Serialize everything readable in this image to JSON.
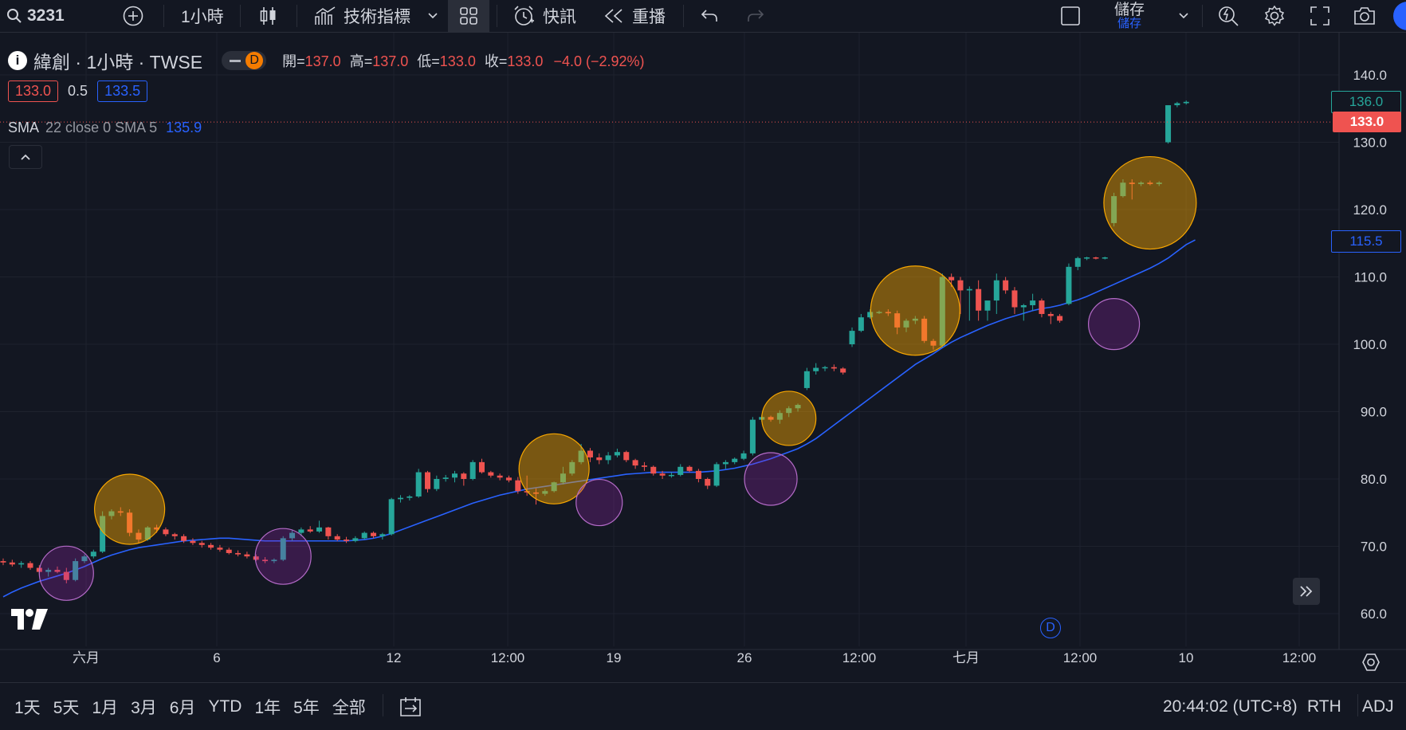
{
  "toolbar": {
    "symbol": "3231",
    "interval": "1小時",
    "indicators": "技術指標",
    "alerts": "快訊",
    "replay": "重播",
    "save_top": "儲存",
    "save_bottom": "儲存"
  },
  "legend": {
    "title": "緯創 · 1小時 · TWSE",
    "badge": "D",
    "open_label": "開=",
    "open": "137.0",
    "high_label": "高=",
    "high": "137.0",
    "low_label": "低=",
    "low": "133.0",
    "close_label": "收=",
    "close": "133.0",
    "change": "−4.0 (−2.92%)",
    "bid": "133.0",
    "spread": "0.5",
    "ask": "133.5",
    "indicator_name": "SMA",
    "indicator_params": "22 close 0 SMA 5",
    "indicator_value": "135.9"
  },
  "price_axis": {
    "ticks": [
      "140.0",
      "130.0",
      "120.0",
      "110.0",
      "100.0",
      "90.0",
      "80.0",
      "70.0",
      "60.0"
    ],
    "last_price": "133.0",
    "upper_label": "136.0",
    "sma_label": "115.5"
  },
  "time_axis": {
    "ticks": [
      "六月",
      "6",
      "12",
      "12:00",
      "19",
      "26",
      "12:00",
      "七月",
      "12:00",
      "10",
      "12:00"
    ]
  },
  "bottom": {
    "ranges": [
      "1天",
      "5天",
      "1月",
      "3月",
      "6月",
      "YTD",
      "1年",
      "5年",
      "全部"
    ],
    "clock": "20:44:02 (UTC+8)",
    "session": "RTH",
    "adj": "ADJ"
  },
  "chart_markers": {
    "dividend_badge": "D"
  },
  "colors": {
    "background": "#131722",
    "up": "#26a69a",
    "down": "#ef5350",
    "sma": "#2962ff",
    "orange_circle": "#f7a600",
    "purple_circle": "#9c27b0"
  },
  "chart_data": {
    "type": "candlestick",
    "ylim": [
      58,
      143
    ],
    "y_ticks": [
      60,
      70,
      80,
      90,
      100,
      110,
      120,
      130,
      140
    ],
    "candles": [
      [
        67.8,
        68.2,
        67.2,
        67.6
      ],
      [
        67.6,
        68.0,
        67.0,
        67.3
      ],
      [
        67.3,
        67.8,
        66.8,
        67.5
      ],
      [
        67.5,
        67.8,
        66.5,
        66.8
      ],
      [
        66.8,
        67.2,
        65.8,
        66.2
      ],
      [
        66.2,
        66.8,
        65.5,
        66.5
      ],
      [
        66.5,
        67.0,
        66.0,
        66.2
      ],
      [
        66.2,
        66.8,
        64.5,
        65.0
      ],
      [
        65.0,
        68.2,
        64.8,
        67.8
      ],
      [
        67.8,
        68.8,
        67.5,
        68.5
      ],
      [
        68.5,
        69.5,
        68.2,
        69.2
      ],
      [
        69.2,
        75.2,
        69.0,
        74.5
      ],
      [
        74.5,
        75.5,
        74.0,
        75.2
      ],
      [
        75.2,
        75.8,
        74.5,
        75.0
      ],
      [
        75.0,
        75.5,
        71.5,
        72.0
      ],
      [
        72.0,
        72.5,
        70.5,
        71.0
      ],
      [
        71.0,
        73.0,
        70.8,
        72.8
      ],
      [
        72.8,
        73.2,
        72.0,
        72.5
      ],
      [
        72.5,
        72.8,
        71.5,
        71.8
      ],
      [
        71.8,
        72.0,
        71.0,
        71.5
      ],
      [
        71.5,
        71.8,
        70.5,
        70.8
      ],
      [
        70.8,
        71.2,
        70.2,
        70.5
      ],
      [
        70.5,
        70.8,
        69.8,
        70.2
      ],
      [
        70.2,
        70.5,
        69.5,
        69.8
      ],
      [
        69.8,
        70.2,
        69.2,
        69.5
      ],
      [
        69.5,
        69.8,
        68.8,
        69.0
      ],
      [
        69.0,
        69.4,
        68.5,
        68.8
      ],
      [
        68.8,
        69.2,
        68.2,
        68.5
      ],
      [
        68.5,
        68.8,
        67.8,
        68.0
      ],
      [
        68.0,
        68.4,
        67.5,
        67.8
      ],
      [
        67.8,
        68.2,
        67.5,
        68.0
      ],
      [
        68.0,
        71.5,
        67.8,
        71.2
      ],
      [
        71.2,
        72.5,
        70.8,
        72.0
      ],
      [
        72.0,
        72.8,
        71.5,
        72.5
      ],
      [
        72.5,
        73.0,
        72.0,
        72.2
      ],
      [
        72.2,
        73.8,
        72.0,
        72.8
      ],
      [
        72.8,
        72.9,
        71.0,
        71.5
      ],
      [
        71.5,
        71.8,
        70.8,
        71.0
      ],
      [
        71.0,
        71.4,
        70.5,
        70.8
      ],
      [
        70.8,
        71.5,
        70.6,
        71.2
      ],
      [
        71.2,
        72.2,
        71.0,
        72.0
      ],
      [
        72.0,
        72.2,
        71.2,
        71.5
      ],
      [
        71.5,
        72.0,
        71.0,
        71.8
      ],
      [
        71.8,
        77.2,
        71.6,
        77.0
      ],
      [
        77.0,
        77.6,
        76.5,
        77.2
      ],
      [
        77.2,
        77.6,
        76.8,
        77.4
      ],
      [
        77.4,
        81.5,
        77.2,
        81.0
      ],
      [
        81.0,
        81.2,
        78.0,
        78.5
      ],
      [
        78.5,
        80.5,
        78.2,
        80.0
      ],
      [
        80.0,
        80.6,
        79.6,
        80.2
      ],
      [
        80.2,
        81.2,
        79.5,
        80.8
      ],
      [
        80.8,
        81.0,
        79.0,
        80.0
      ],
      [
        80.0,
        82.8,
        79.8,
        82.5
      ],
      [
        82.5,
        83.0,
        80.8,
        81.0
      ],
      [
        81.0,
        81.2,
        80.2,
        80.5
      ],
      [
        80.5,
        80.8,
        79.8,
        80.2
      ],
      [
        80.2,
        80.5,
        79.5,
        79.8
      ],
      [
        79.8,
        80.3,
        77.8,
        78.2
      ],
      [
        78.2,
        80.5,
        77.5,
        78.0
      ],
      [
        78.0,
        78.6,
        76.2,
        77.8
      ],
      [
        77.8,
        78.5,
        77.5,
        78.2
      ],
      [
        78.2,
        79.6,
        78.0,
        79.5
      ],
      [
        79.5,
        81.8,
        79.2,
        80.8
      ],
      [
        80.8,
        82.8,
        80.5,
        82.5
      ],
      [
        82.5,
        85.2,
        82.2,
        84.2
      ],
      [
        84.2,
        84.6,
        82.5,
        83.2
      ],
      [
        83.2,
        83.8,
        82.2,
        82.8
      ],
      [
        82.8,
        84.0,
        82.2,
        83.5
      ],
      [
        83.5,
        84.5,
        83.2,
        84.0
      ],
      [
        84.0,
        84.2,
        82.5,
        82.8
      ],
      [
        82.8,
        83.0,
        81.5,
        82.0
      ],
      [
        82.0,
        82.5,
        81.2,
        81.8
      ],
      [
        81.8,
        82.0,
        80.5,
        80.8
      ],
      [
        80.8,
        81.2,
        80.0,
        80.5
      ],
      [
        80.5,
        81.0,
        80.2,
        80.6
      ],
      [
        80.6,
        82.2,
        80.4,
        81.8
      ],
      [
        81.8,
        82.0,
        81.0,
        81.2
      ],
      [
        81.2,
        81.5,
        79.5,
        80.0
      ],
      [
        80.0,
        80.2,
        78.5,
        79.0
      ],
      [
        79.0,
        82.5,
        78.8,
        82.2
      ],
      [
        82.2,
        82.8,
        81.5,
        82.5
      ],
      [
        82.5,
        83.2,
        82.2,
        83.0
      ],
      [
        83.0,
        84.2,
        82.8,
        83.8
      ],
      [
        83.8,
        89.2,
        83.5,
        88.8
      ],
      [
        88.8,
        89.5,
        88.5,
        89.2
      ],
      [
        89.2,
        89.4,
        88.5,
        88.8
      ],
      [
        88.8,
        90.2,
        88.2,
        89.8
      ],
      [
        89.8,
        90.8,
        89.2,
        90.5
      ],
      [
        90.5,
        91.2,
        90.0,
        91.0
      ],
      [
        93.5,
        96.5,
        93.2,
        96.0
      ],
      [
        96.0,
        97.2,
        95.5,
        96.5
      ],
      [
        96.5,
        96.8,
        96.0,
        96.6
      ],
      [
        96.6,
        97.0,
        96.0,
        96.4
      ],
      [
        96.4,
        96.6,
        95.5,
        95.8
      ],
      [
        100.0,
        102.5,
        99.6,
        102.0
      ],
      [
        102.0,
        104.5,
        101.8,
        104.0
      ],
      [
        104.0,
        105.2,
        103.8,
        104.8
      ],
      [
        104.8,
        105.0,
        104.5,
        104.8
      ],
      [
        104.8,
        105.2,
        104.2,
        104.6
      ],
      [
        104.6,
        105.0,
        101.5,
        102.5
      ],
      [
        102.5,
        103.8,
        101.8,
        103.5
      ],
      [
        103.5,
        104.2,
        103.0,
        103.8
      ],
      [
        103.8,
        104.2,
        100.2,
        100.5
      ],
      [
        100.5,
        100.8,
        99.2,
        99.8
      ],
      [
        99.8,
        110.5,
        99.5,
        110.0
      ],
      [
        110.0,
        110.5,
        108.5,
        109.5
      ],
      [
        109.5,
        110.0,
        104.5,
        108.0
      ],
      [
        108.0,
        108.6,
        103.5,
        108.2
      ],
      [
        108.2,
        109.5,
        103.5,
        105.0
      ],
      [
        105.0,
        106.0,
        103.5,
        106.5
      ],
      [
        106.5,
        110.5,
        104.5,
        109.5
      ],
      [
        109.5,
        110.0,
        107.5,
        108.0
      ],
      [
        108.0,
        108.5,
        104.5,
        105.5
      ],
      [
        105.5,
        106.0,
        103.5,
        105.8
      ],
      [
        105.8,
        107.5,
        105.0,
        106.5
      ],
      [
        106.5,
        106.8,
        104.0,
        104.5
      ],
      [
        104.5,
        104.8,
        103.0,
        104.2
      ],
      [
        104.2,
        104.5,
        103.2,
        103.5
      ],
      [
        106.0,
        112.0,
        105.8,
        111.5
      ],
      [
        111.5,
        113.0,
        111.0,
        112.8
      ],
      [
        112.8,
        113.0,
        112.5,
        112.9
      ],
      [
        112.9,
        113.0,
        112.6,
        112.8
      ],
      [
        112.8,
        113.0,
        112.6,
        112.9
      ],
      [
        118.0,
        122.5,
        117.5,
        122.0
      ],
      [
        122.0,
        124.5,
        121.8,
        124.0
      ],
      [
        124.0,
        124.5,
        121.5,
        123.8
      ],
      [
        123.8,
        124.2,
        123.5,
        124.0
      ],
      [
        124.0,
        124.3,
        123.6,
        123.8
      ],
      [
        123.8,
        124.2,
        123.5,
        124.0
      ],
      [
        130.0,
        135.5,
        129.8,
        135.5
      ],
      [
        135.5,
        136.0,
        135.2,
        135.8
      ],
      [
        135.8,
        136.2,
        135.6,
        136.0
      ]
    ],
    "sma": [
      62.5,
      63.2,
      63.8,
      64.3,
      64.8,
      65.2,
      65.6,
      66.0,
      66.5,
      67.0,
      67.6,
      68.2,
      68.7,
      69.1,
      69.5,
      69.8,
      70.0,
      70.2,
      70.4,
      70.6,
      70.8,
      70.9,
      71.0,
      71.1,
      71.2,
      71.2,
      71.1,
      71.0,
      70.9,
      70.8,
      70.8,
      70.8,
      70.8,
      70.8,
      70.8,
      70.8,
      70.8,
      70.8,
      70.8,
      70.9,
      71.0,
      71.2,
      71.5,
      71.9,
      72.4,
      72.9,
      73.4,
      73.9,
      74.4,
      74.9,
      75.4,
      75.9,
      76.4,
      76.8,
      77.2,
      77.6,
      77.9,
      78.2,
      78.5,
      78.7,
      78.9,
      79.1,
      79.3,
      79.5,
      79.7,
      79.9,
      80.1,
      80.3,
      80.5,
      80.7,
      80.8,
      80.9,
      81.0,
      81.0,
      81.0,
      81.0,
      81.0,
      81.0,
      81.1,
      81.2,
      81.4,
      81.6,
      81.9,
      82.2,
      82.6,
      83.0,
      83.5,
      84.0,
      84.5,
      85.2,
      86.0,
      87.0,
      88.0,
      89.0,
      90.0,
      91.0,
      92.0,
      93.0,
      94.0,
      95.0,
      96.0,
      97.0,
      97.8,
      98.6,
      99.5,
      100.3,
      101.0,
      101.6,
      102.2,
      102.8,
      103.3,
      103.8,
      104.2,
      104.6,
      105.0,
      105.3,
      105.5,
      105.8,
      106.2,
      106.6,
      107.1,
      107.7,
      108.3,
      108.9,
      109.5,
      110.1,
      110.7,
      111.3,
      112.0,
      112.8,
      113.8,
      114.8,
      115.5
    ],
    "orange_circles": [
      [
        14,
        75.5
      ],
      [
        61,
        81.5
      ],
      [
        87,
        89.0
      ],
      [
        101,
        105.0
      ],
      [
        127,
        121.0
      ]
    ],
    "purple_circles": [
      [
        7,
        66.0
      ],
      [
        31,
        68.5
      ],
      [
        66,
        76.5
      ],
      [
        85,
        80.0
      ],
      [
        123,
        103.0
      ]
    ]
  }
}
